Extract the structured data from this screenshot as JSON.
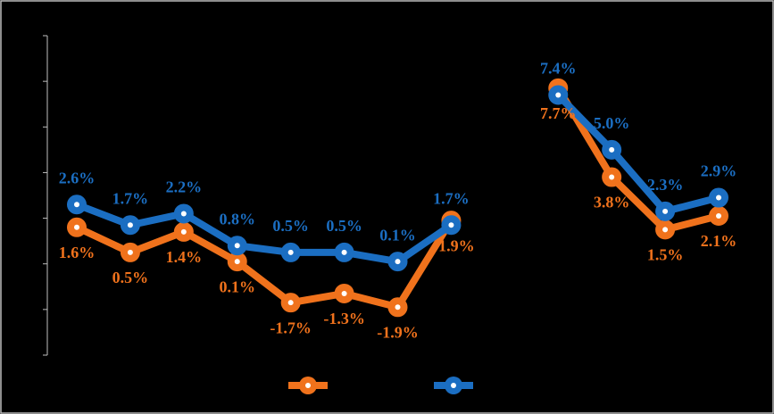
{
  "chart_data": {
    "type": "line",
    "categories": [
      null,
      null,
      null,
      null,
      null,
      null,
      null,
      null,
      null,
      null,
      null,
      null,
      null
    ],
    "series": [
      {
        "color": "#f0721c",
        "values": [
          1.6,
          0.5,
          1.4,
          0.1,
          -1.7,
          -1.3,
          -1.9,
          1.9,
          null,
          7.7,
          3.8,
          1.5,
          2.1
        ],
        "value_labels": [
          "1.6%",
          "0.5%",
          "1.4%",
          "0.1%",
          "-1.7%",
          "-1.3%",
          "-1.9%",
          "1.9%",
          null,
          "7.7%",
          "3.8%",
          "1.5%",
          "2.1%"
        ]
      },
      {
        "color": "#1b6ec2",
        "values": [
          2.6,
          1.7,
          2.2,
          0.8,
          0.5,
          0.5,
          0.1,
          1.7,
          null,
          7.4,
          5.0,
          2.3,
          2.9
        ],
        "value_labels": [
          "2.6%",
          "1.7%",
          "2.2%",
          "0.8%",
          "0.5%",
          "0.5%",
          "0.1%",
          "1.7%",
          null,
          "7.4%",
          "5.0%",
          "2.3%",
          "2.9%"
        ]
      }
    ],
    "ylim": [
      -4,
      10
    ],
    "yticks": [
      -4,
      -2,
      0,
      2,
      4,
      6,
      8,
      10
    ]
  }
}
